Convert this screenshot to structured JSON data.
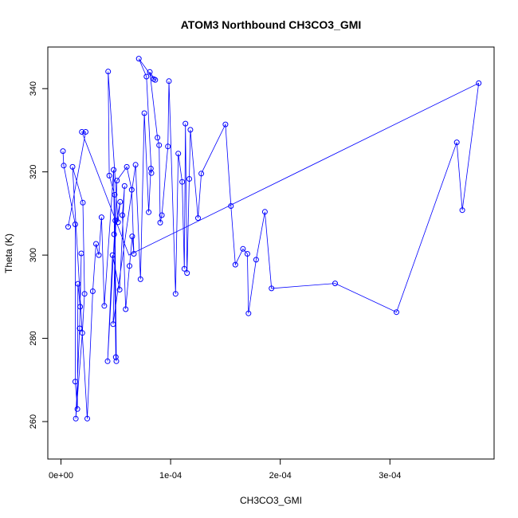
{
  "chart_data": {
    "type": "line",
    "title": "ATOM3 Northbound CH3CO3_GMI",
    "xlabel": "CH3CO3_GMI",
    "ylabel": "Theta (K)",
    "xlim": [
      -1.2e-05,
      0.000395
    ],
    "ylim": [
      251,
      350
    ],
    "x_ticks": [
      {
        "value": 0,
        "label": "0e+00"
      },
      {
        "value": 0.0001,
        "label": "1e-04"
      },
      {
        "value": 0.0002,
        "label": "2e-04"
      },
      {
        "value": 0.0003,
        "label": "3e-04"
      }
    ],
    "y_ticks": [
      {
        "value": 260,
        "label": "260"
      },
      {
        "value": 280,
        "label": "280"
      },
      {
        "value": 300,
        "label": "300"
      },
      {
        "value": 320,
        "label": "320"
      },
      {
        "value": 340,
        "label": "340"
      }
    ],
    "grid": false,
    "series": [
      {
        "color": "#0000ff",
        "marker": "open-circle",
        "points": [
          [
            1.8e-06,
            325.0
          ],
          [
            2.5e-06,
            321.5
          ],
          [
            6.5e-06,
            306.8
          ],
          [
            1.05e-05,
            321.2
          ],
          [
            1.3e-05,
            307.4
          ],
          [
            1.55e-05,
            293.1
          ],
          [
            1.7e-05,
            282.4
          ],
          [
            1.75e-05,
            287.6
          ],
          [
            1.85e-05,
            300.4
          ],
          [
            1.95e-05,
            281.3
          ],
          [
            2.15e-05,
            290.7
          ],
          [
            2e-05,
            312.6
          ],
          [
            1.9e-05,
            329.6
          ],
          [
            2.25e-05,
            329.6
          ],
          [
            2.4e-05,
            260.7
          ],
          [
            1.5e-05,
            263.0
          ],
          [
            1.3e-05,
            269.6
          ],
          [
            1.35e-05,
            260.7
          ],
          [
            2.9e-05,
            291.3
          ],
          [
            3.2e-05,
            302.7
          ],
          [
            3.45e-05,
            300.0
          ],
          [
            3.7e-05,
            309.1
          ],
          [
            3.95e-05,
            287.8
          ],
          [
            4.25e-05,
            274.5
          ],
          [
            4.3e-05,
            344.1
          ],
          [
            4.4e-05,
            319.1
          ],
          [
            4.7e-05,
            300.0
          ],
          [
            4.75e-05,
            283.4
          ],
          [
            4.8e-05,
            320.5
          ],
          [
            4.85e-05,
            305.0
          ],
          [
            4.9e-05,
            314.5
          ],
          [
            4.95e-05,
            308.3
          ],
          [
            5e-05,
            275.5
          ],
          [
            5.05e-05,
            274.5
          ],
          [
            5.1e-05,
            317.9
          ],
          [
            5.2e-05,
            307.9
          ],
          [
            5.35e-05,
            291.7
          ],
          [
            5.4e-05,
            312.8
          ],
          [
            5.6e-05,
            309.6
          ],
          [
            5.8e-05,
            316.6
          ],
          [
            5.9e-05,
            287.0
          ],
          [
            6e-05,
            321.2
          ],
          [
            6.25e-05,
            297.4
          ],
          [
            6.45e-05,
            315.7
          ],
          [
            6.5e-05,
            304.5
          ],
          [
            6.65e-05,
            300.3
          ],
          [
            6.8e-05,
            321.7
          ],
          [
            7.1e-05,
            347.2
          ],
          [
            7.25e-05,
            294.2
          ],
          [
            7.6e-05,
            334.1
          ],
          [
            7.8e-05,
            342.9
          ],
          [
            8e-05,
            310.3
          ],
          [
            8.1e-05,
            344.0
          ],
          [
            8.2e-05,
            320.8
          ],
          [
            8.25e-05,
            319.7
          ],
          [
            8.45e-05,
            342.3
          ],
          [
            8.6e-05,
            342.1
          ],
          [
            8.8e-05,
            328.2
          ],
          [
            8.95e-05,
            326.4
          ],
          [
            9.05e-05,
            307.8
          ],
          [
            9.2e-05,
            309.6
          ],
          [
            9.75e-05,
            326.1
          ],
          [
            9.85e-05,
            341.8
          ],
          [
            0.0001045,
            290.7
          ],
          [
            0.000107,
            324.4
          ],
          [
            0.0001105,
            317.6
          ],
          [
            0.0001125,
            296.7
          ],
          [
            0.0001135,
            331.6
          ],
          [
            0.000115,
            295.7
          ],
          [
            0.000117,
            318.3
          ],
          [
            0.000118,
            330.1
          ],
          [
            0.000125,
            308.9
          ],
          [
            0.000128,
            319.6
          ],
          [
            0.00015,
            331.4
          ],
          [
            0.000155,
            311.8
          ],
          [
            0.000159,
            297.7
          ],
          [
            0.000166,
            301.5
          ],
          [
            0.00017,
            300.3
          ],
          [
            0.000171,
            286.0
          ],
          [
            0.000178,
            298.9
          ],
          [
            0.000186,
            310.4
          ],
          [
            0.000192,
            292.0
          ],
          [
            0.00025,
            293.2
          ],
          [
            0.000306,
            286.3
          ],
          [
            0.000361,
            327.1
          ],
          [
            0.000366,
            310.8
          ],
          [
            0.000381,
            341.3
          ]
        ],
        "path": [
          [
            1.8e-06,
            325.0
          ],
          [
            2.5e-06,
            321.5
          ],
          [
            1.3e-05,
            307.4
          ],
          [
            1.3e-05,
            269.6
          ],
          [
            1.5e-05,
            263.0
          ],
          [
            1.55e-05,
            293.1
          ],
          [
            1.75e-05,
            287.6
          ],
          [
            1.85e-05,
            300.4
          ],
          [
            1.7e-05,
            282.4
          ],
          [
            1.35e-05,
            260.7
          ],
          [
            1.95e-05,
            281.3
          ],
          [
            2.15e-05,
            290.7
          ],
          [
            2e-05,
            312.6
          ],
          [
            1.05e-05,
            321.2
          ],
          [
            2.4e-05,
            260.7
          ],
          [
            2.9e-05,
            291.3
          ],
          [
            3.2e-05,
            302.7
          ],
          [
            3.45e-05,
            300.0
          ],
          [
            3.7e-05,
            309.1
          ],
          [
            3.95e-05,
            287.8
          ],
          [
            4.8e-05,
            320.5
          ],
          [
            5e-05,
            275.5
          ],
          [
            5.05e-05,
            274.5
          ],
          [
            4.9e-05,
            314.5
          ],
          [
            4.4e-05,
            319.1
          ],
          [
            4.3e-05,
            344.1
          ],
          [
            5.2e-05,
            307.9
          ],
          [
            5.4e-05,
            312.8
          ],
          [
            4.85e-05,
            305.0
          ],
          [
            4.95e-05,
            308.3
          ],
          [
            4.25e-05,
            274.5
          ],
          [
            4.7e-05,
            300.0
          ],
          [
            5.35e-05,
            291.7
          ],
          [
            5.8e-05,
            316.6
          ],
          [
            5.6e-05,
            309.6
          ],
          [
            5.9e-05,
            287.0
          ],
          [
            6.25e-05,
            297.4
          ],
          [
            6.5e-05,
            304.5
          ],
          [
            6.65e-05,
            300.3
          ],
          [
            6.45e-05,
            315.7
          ],
          [
            6e-05,
            321.2
          ],
          [
            5.1e-05,
            317.9
          ],
          [
            4.75e-05,
            283.4
          ],
          [
            6.8e-05,
            321.7
          ],
          [
            7.25e-05,
            294.2
          ],
          [
            7.6e-05,
            334.1
          ],
          [
            8e-05,
            310.3
          ],
          [
            8.2e-05,
            320.8
          ],
          [
            8.25e-05,
            319.7
          ],
          [
            7.8e-05,
            342.9
          ],
          [
            7.1e-05,
            347.2
          ],
          [
            8.45e-05,
            342.3
          ],
          [
            8.6e-05,
            342.1
          ],
          [
            8.1e-05,
            344.0
          ],
          [
            8.8e-05,
            328.2
          ],
          [
            8.95e-05,
            326.4
          ],
          [
            9.05e-05,
            307.8
          ],
          [
            9.2e-05,
            309.6
          ],
          [
            9.75e-05,
            326.1
          ],
          [
            9.85e-05,
            341.8
          ],
          [
            0.0001045,
            290.7
          ],
          [
            0.000107,
            324.4
          ],
          [
            0.0001105,
            317.6
          ],
          [
            0.0001125,
            296.7
          ],
          [
            0.0001135,
            331.6
          ],
          [
            0.000115,
            295.7
          ],
          [
            0.000117,
            318.3
          ],
          [
            0.000118,
            330.1
          ],
          [
            0.000125,
            308.9
          ],
          [
            0.000128,
            319.6
          ],
          [
            0.00015,
            331.4
          ],
          [
            0.000155,
            311.8
          ],
          [
            0.000159,
            297.7
          ],
          [
            0.000166,
            301.5
          ],
          [
            0.00017,
            300.3
          ],
          [
            0.000171,
            286.0
          ],
          [
            0.000178,
            298.9
          ],
          [
            0.000186,
            310.4
          ],
          [
            0.000192,
            292.0
          ],
          [
            0.00025,
            293.2
          ],
          [
            0.000306,
            286.3
          ],
          [
            0.000361,
            327.1
          ],
          [
            0.000366,
            310.8
          ],
          [
            0.000381,
            341.3
          ],
          [
            6.2e-05,
            300.0
          ],
          [
            1.9e-05,
            329.6
          ],
          [
            2.25e-05,
            329.6
          ],
          [
            6.5e-06,
            306.8
          ]
        ]
      }
    ]
  }
}
